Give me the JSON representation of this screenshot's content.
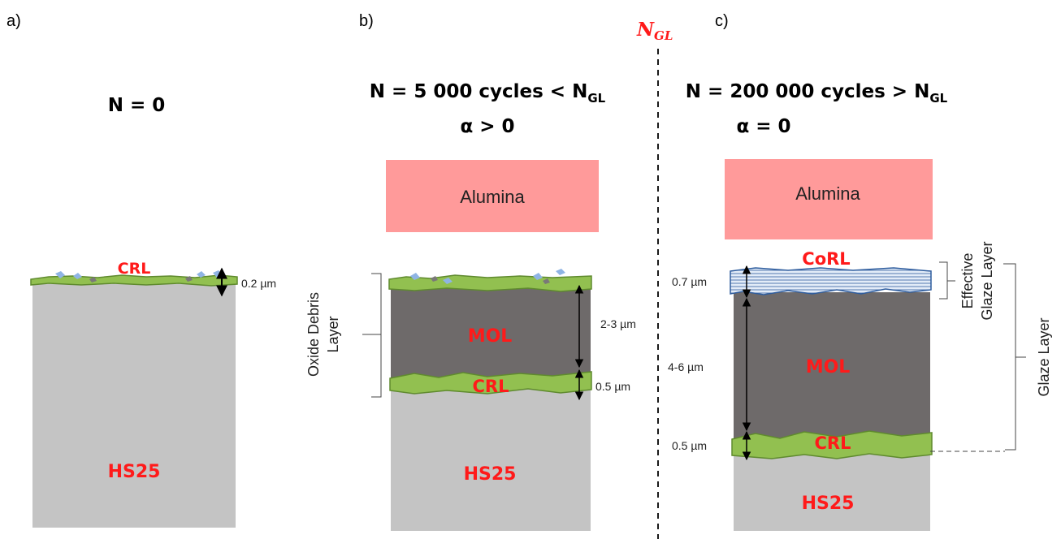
{
  "panels": {
    "a": {
      "label": "a)",
      "title": "N = 0",
      "layers": {
        "crl": "CRL",
        "substrate": "HS25"
      },
      "dims": {
        "crl": "0.2 µm"
      }
    },
    "b": {
      "label": "b)",
      "title_main": "N = 5 000 cycles < N",
      "title_sub": "GL",
      "alpha": "α > 0",
      "counterface": "Alumina",
      "layers": {
        "mol": "MOL",
        "crl": "CRL",
        "substrate": "HS25"
      },
      "dims": {
        "mol": "2-3 µm",
        "crl": "0.5 µm"
      },
      "bracket_label_line1": "Oxide Debris",
      "bracket_label_line2": "Layer"
    },
    "c": {
      "label": "c)",
      "title_main": "N = 200 000 cycles > N",
      "title_sub": "GL",
      "alpha": "α = 0",
      "counterface": "Alumina",
      "layers": {
        "corl": "CoRL",
        "mol": "MOL",
        "crl": "CRL",
        "substrate": "HS25"
      },
      "dims": {
        "corl": "0.7 µm",
        "mol": "4-6 µm",
        "crl": "0.5 µm"
      },
      "effective_label_line1": "Effective",
      "effective_label_line2": "Glaze Layer",
      "glaze_label": "Glaze Layer"
    }
  },
  "threshold": {
    "symbol": "N",
    "sub": "GL"
  },
  "colors": {
    "substrate": "#c4c4c4",
    "mol": "#6e6a6a",
    "crl": "#92c050",
    "crl_edge": "#5f8a2e",
    "alumina": "#ff9a9a",
    "corl": "#d6e3f4",
    "corl_edge": "#2f5d9e",
    "particle": "#8fb4e4",
    "red": "#ff1a1a"
  }
}
